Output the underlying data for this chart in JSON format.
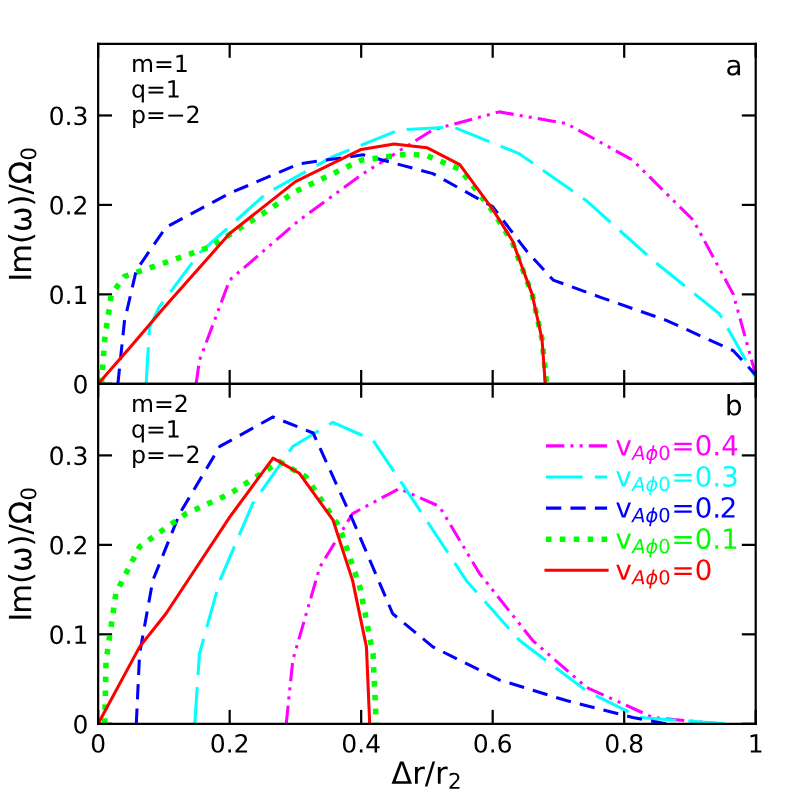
{
  "chart_data": [
    {
      "type": "line",
      "ylabel": "Im(ω)/Ω$_{0}$",
      "xlim": [
        0,
        1
      ],
      "ylim": [
        0,
        0.38
      ],
      "xticks": [
        0,
        0.2,
        0.4,
        0.6,
        0.8,
        1
      ],
      "yticks": [
        0,
        0.1,
        0.2,
        0.3
      ],
      "tick_labels": "y",
      "grid": false,
      "legend": false,
      "annotations": [
        "m=1",
        "q=1",
        "p=−2",
        "a"
      ],
      "series": [
        {
          "color": "#ff00ff",
          "line_style": "dashdot",
          "x": [
            0.149,
            0.154,
            0.2,
            0.306,
            0.403,
            0.509,
            0.61,
            0.712,
            0.813,
            0.905,
            0.966,
            1
          ],
          "values": [
            0,
            0.026,
            0.116,
            0.183,
            0.235,
            0.284,
            0.304,
            0.291,
            0.25,
            0.183,
            0.1,
            0.01
          ]
        },
        {
          "color": "#00ffff",
          "line_style": "longdash",
          "x": [
            0.073,
            0.078,
            0.093,
            0.154,
            0.256,
            0.357,
            0.458,
            0.54,
            0.641,
            0.742,
            0.844,
            0.945,
            1
          ],
          "values": [
            0,
            0.063,
            0.086,
            0.146,
            0.213,
            0.254,
            0.284,
            0.287,
            0.257,
            0.205,
            0.138,
            0.078,
            0.007
          ]
        },
        {
          "color": "#0000ff",
          "line_style": "dashed",
          "x": [
            0.03,
            0.04,
            0.058,
            0.103,
            0.2,
            0.306,
            0.403,
            0.509,
            0.6,
            0.651,
            0.692,
            0.763,
            0.864,
            0.966,
            1
          ],
          "values": [
            0,
            0.07,
            0.127,
            0.175,
            0.213,
            0.246,
            0.256,
            0.235,
            0.198,
            0.149,
            0.116,
            0.097,
            0.071,
            0.037,
            0.01
          ]
        },
        {
          "color": "#00ff00",
          "line_style": "dotted",
          "x": [
            0.005,
            0.01,
            0.02,
            0.04,
            0.1,
            0.17,
            0.25,
            0.3,
            0.4,
            0.47,
            0.5,
            0.55,
            0.6,
            0.63,
            0.66,
            0.675,
            0.682
          ],
          "values": [
            0,
            0.05,
            0.1,
            0.12,
            0.135,
            0.153,
            0.19,
            0.215,
            0.25,
            0.257,
            0.255,
            0.24,
            0.193,
            0.158,
            0.1,
            0.05,
            0
          ]
        },
        {
          "color": "#ff0000",
          "line_style": "solid",
          "x": [
            0,
            0.05,
            0.1,
            0.2,
            0.3,
            0.4,
            0.45,
            0.5,
            0.55,
            0.6,
            0.63,
            0.66,
            0.675,
            0.68
          ],
          "values": [
            0,
            0.042,
            0.085,
            0.168,
            0.226,
            0.262,
            0.268,
            0.264,
            0.245,
            0.195,
            0.16,
            0.1,
            0.05,
            0
          ]
        }
      ]
    },
    {
      "type": "line",
      "xlabel": "Δr/r$_{2}$",
      "ylabel": "Im(ω)/Ω$_{0}$",
      "xlim": [
        0,
        1
      ],
      "ylim": [
        0,
        0.38
      ],
      "xticks": [
        0,
        0.2,
        0.4,
        0.6,
        0.8,
        1
      ],
      "yticks": [
        0,
        0.1,
        0.2,
        0.3
      ],
      "grid": false,
      "legend": "top right",
      "annotations": [
        "m=2",
        "q=1",
        "p=−2",
        "b"
      ],
      "series": [
        {
          "name": "v$_{Aϕ0}$=0.4",
          "color": "#ff00ff",
          "line_style": "dashdot",
          "x": [
            0.286,
            0.296,
            0.337,
            0.387,
            0.458,
            0.519,
            0.58,
            0.661,
            0.742,
            0.844,
            0.945
          ],
          "values": [
            0,
            0.071,
            0.175,
            0.235,
            0.263,
            0.243,
            0.168,
            0.093,
            0.041,
            0.007,
            0
          ]
        },
        {
          "name": "v$_{Aϕ0}$=0.3",
          "color": "#00ffff",
          "line_style": "longdash",
          "x": [
            0.147,
            0.154,
            0.185,
            0.235,
            0.296,
            0.357,
            0.418,
            0.479,
            0.56,
            0.641,
            0.742,
            0.824,
            0.955
          ],
          "values": [
            0,
            0.078,
            0.16,
            0.246,
            0.31,
            0.337,
            0.317,
            0.25,
            0.16,
            0.093,
            0.037,
            0.007,
            0
          ]
        },
        {
          "name": "v$_{Aϕ0}$=0.2",
          "color": "#0000ff",
          "line_style": "dashed",
          "x": [
            0.058,
            0.063,
            0.083,
            0.124,
            0.185,
            0.266,
            0.327,
            0.387,
            0.448,
            0.509,
            0.61,
            0.712,
            0.813,
            0.864
          ],
          "values": [
            0,
            0.078,
            0.16,
            0.235,
            0.31,
            0.343,
            0.325,
            0.228,
            0.123,
            0.086,
            0.049,
            0.026,
            0.007,
            0
          ]
        },
        {
          "name": "v$_{Aϕ0}$=0.1",
          "color": "#00ff00",
          "line_style": "dotted",
          "x": [
            0.01,
            0.012,
            0.027,
            0.063,
            0.134,
            0.2,
            0.276,
            0.316,
            0.367,
            0.398,
            0.418,
            0.423
          ],
          "values": [
            0,
            0.07,
            0.146,
            0.198,
            0.235,
            0.257,
            0.293,
            0.276,
            0.22,
            0.153,
            0.078,
            0
          ]
        },
        {
          "name": "v$_{Aϕ0}$=0",
          "color": "#ff0000",
          "line_style": "solid",
          "x": [
            0,
            0.063,
            0.103,
            0.2,
            0.266,
            0.306,
            0.357,
            0.387,
            0.408,
            0.413
          ],
          "values": [
            0,
            0.086,
            0.123,
            0.231,
            0.297,
            0.28,
            0.228,
            0.16,
            0.086,
            0
          ]
        }
      ]
    }
  ]
}
